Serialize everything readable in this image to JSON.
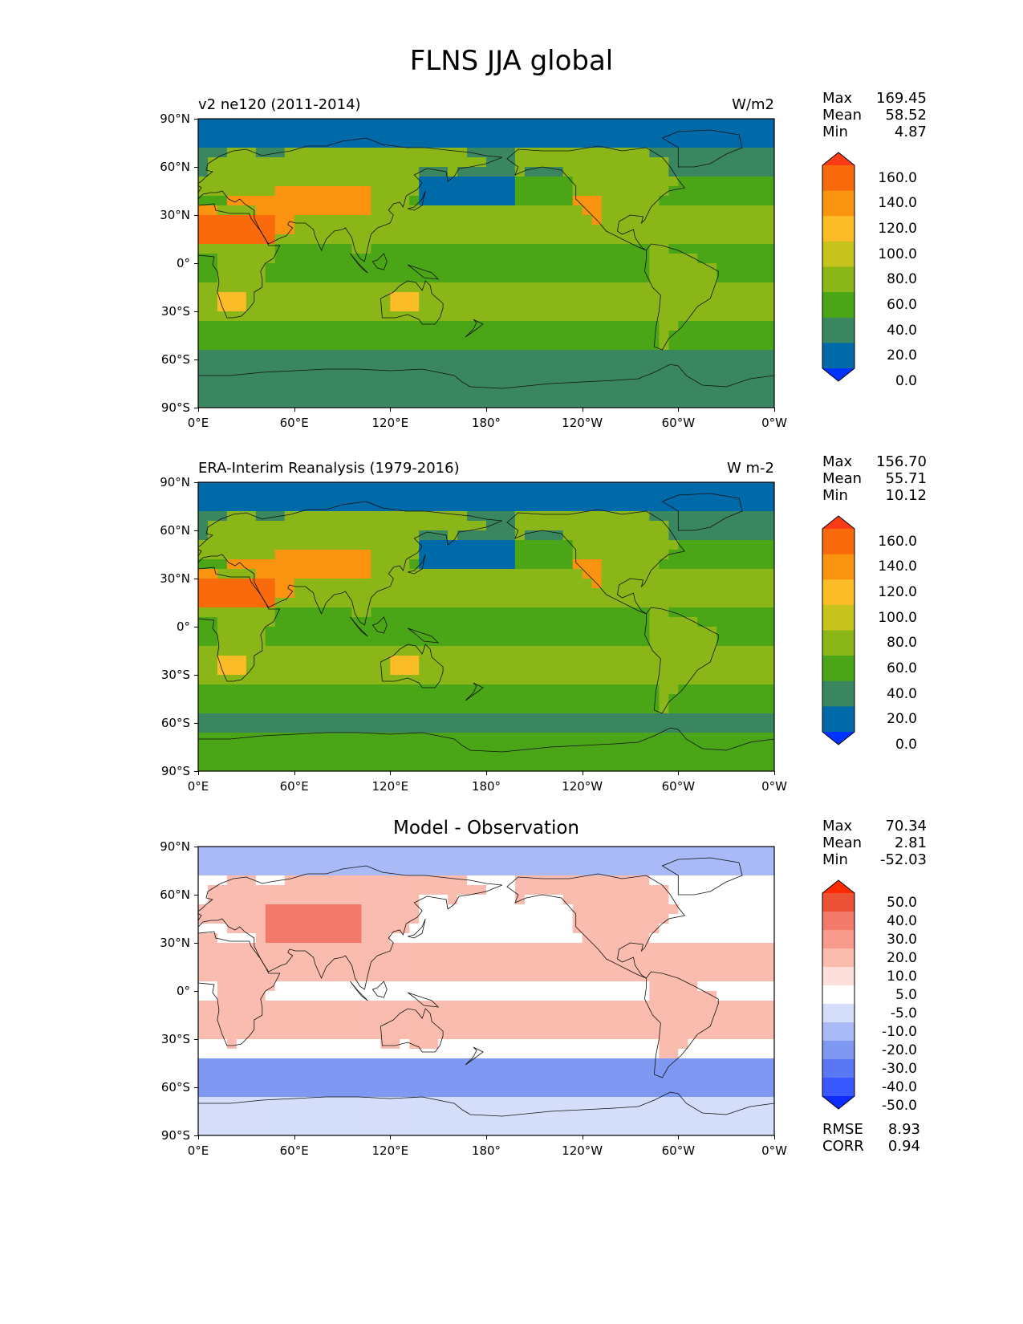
{
  "title": "FLNS JJA global",
  "panels": [
    {
      "id": "model",
      "title": "v2 ne120 (2011-2014)",
      "units": "W/m2",
      "stats": [
        {
          "key": "Max",
          "value": "169.45"
        },
        {
          "key": "Mean",
          "value": "58.52"
        },
        {
          "key": "Min",
          "value": "4.87"
        }
      ],
      "colorbar_labels": [
        "160.0",
        "140.0",
        "120.0",
        "100.0",
        "80.0",
        "60.0",
        "40.0",
        "20.0",
        "0.0"
      ]
    },
    {
      "id": "obs",
      "title": "ERA-Interim Reanalysis (1979-2016)",
      "units": "W m-2",
      "stats": [
        {
          "key": "Max",
          "value": "156.70"
        },
        {
          "key": "Mean",
          "value": "55.71"
        },
        {
          "key": "Min",
          "value": "10.12"
        }
      ],
      "colorbar_labels": [
        "160.0",
        "140.0",
        "120.0",
        "100.0",
        "80.0",
        "60.0",
        "40.0",
        "20.0",
        "0.0"
      ]
    },
    {
      "id": "diff",
      "title": "Model - Observation",
      "units": "",
      "stats": [
        {
          "key": "Max",
          "value": "70.34"
        },
        {
          "key": "Mean",
          "value": "2.81"
        },
        {
          "key": "Min",
          "value": "-52.03"
        }
      ],
      "colorbar_labels": [
        "50.0",
        "40.0",
        "30.0",
        "20.0",
        "10.0",
        "5.0",
        "-5.0",
        "-10.0",
        "-20.0",
        "-30.0",
        "-40.0",
        "-50.0"
      ],
      "extra_stats": [
        {
          "key": "RMSE",
          "value": "8.93"
        },
        {
          "key": "CORR",
          "value": "0.94"
        }
      ]
    }
  ],
  "x_ticks": [
    "0°E",
    "60°E",
    "120°E",
    "180°",
    "120°W",
    "60°W",
    "0°W"
  ],
  "y_ticks": [
    "90°N",
    "60°N",
    "30°N",
    "0°",
    "30°S",
    "60°S",
    "90°S"
  ],
  "chart_data": [
    {
      "type": "heatmap",
      "title": "v2 ne120 (2011-2014)",
      "units": "W/m2",
      "x_range": [
        0,
        360
      ],
      "y_range": [
        -90,
        90
      ],
      "levels": [
        0,
        20,
        40,
        60,
        80,
        100,
        120,
        140,
        160
      ],
      "colors": [
        "#0033ff",
        "#006aa8",
        "#3a8660",
        "#4aa616",
        "#8ab618",
        "#c6c41c",
        "#fcbc28",
        "#fa9410",
        "#f86a0c",
        "#fc3c16"
      ],
      "stats": {
        "max": 169.45,
        "mean": 58.52,
        "min": 4.87
      }
    },
    {
      "type": "heatmap",
      "title": "ERA-Interim Reanalysis (1979-2016)",
      "units": "W m-2",
      "x_range": [
        0,
        360
      ],
      "y_range": [
        -90,
        90
      ],
      "levels": [
        0,
        20,
        40,
        60,
        80,
        100,
        120,
        140,
        160
      ],
      "colors": [
        "#0033ff",
        "#006aa8",
        "#3a8660",
        "#4aa616",
        "#8ab618",
        "#c6c41c",
        "#fcbc28",
        "#fa9410",
        "#f86a0c",
        "#fc3c16"
      ],
      "stats": {
        "max": 156.7,
        "mean": 55.71,
        "min": 10.12
      }
    },
    {
      "type": "heatmap",
      "title": "Model - Observation",
      "units": "",
      "x_range": [
        0,
        360
      ],
      "y_range": [
        -90,
        90
      ],
      "levels": [
        -50,
        -40,
        -30,
        -20,
        -10,
        -5,
        5,
        10,
        20,
        30,
        40,
        50
      ],
      "colors": [
        "#0e2cff",
        "#3a58ff",
        "#5a78f6",
        "#7f98f2",
        "#a9baf6",
        "#d4ddfa",
        "#ffffff",
        "#fde0dc",
        "#fbbcb0",
        "#f89a8c",
        "#f37a6a",
        "#ec5238",
        "#ff2a00"
      ],
      "stats": {
        "max": 70.34,
        "mean": 2.81,
        "min": -52.03,
        "rmse": 8.93,
        "corr": 0.94
      }
    }
  ]
}
